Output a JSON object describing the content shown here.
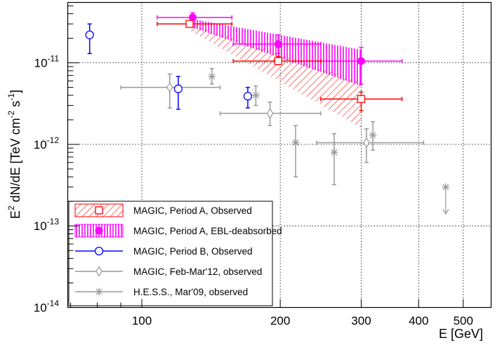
{
  "chart_data": {
    "type": "scatter",
    "xlabel": "E [GeV]",
    "ylabel_parts": {
      "y1": "E",
      "y2": "2",
      "y3": " dN/dE [TeV cm",
      "y4": "-2",
      "y5": " s",
      "y6": "-1",
      "y7": "]"
    },
    "xscale": "log",
    "yscale": "log",
    "xlim": [
      69,
      575
    ],
    "ylim": [
      1e-14,
      5.5e-11
    ],
    "grid": true,
    "legend_position": "bottom-left",
    "x_ticks": [
      {
        "value": 100,
        "label": "100"
      },
      {
        "value": 200,
        "label": "200"
      },
      {
        "value": 300,
        "label": "300"
      },
      {
        "value": 400,
        "label": "400"
      },
      {
        "value": 500,
        "label": "500"
      }
    ],
    "y_ticks": [
      {
        "value": 1e-14,
        "base": "10",
        "exp": "-14"
      },
      {
        "value": 1e-13,
        "base": "10",
        "exp": "-13"
      },
      {
        "value": 1e-12,
        "base": "10",
        "exp": "-12"
      },
      {
        "value": 1e-11,
        "base": "10",
        "exp": "-11"
      }
    ],
    "series": [
      {
        "name": "MAGIC, Period A, Observed",
        "color": "#ff0000",
        "marker": "open-square",
        "band": {
          "upper": [
            [
              127,
              3e-11
            ],
            [
              300,
              5.8e-12
            ]
          ],
          "lower": [
            [
              127,
              2.5e-11
            ],
            [
              300,
              1.6e-12
            ]
          ]
        },
        "points": [
          {
            "x": 127,
            "y": 3e-11,
            "xlo": 108,
            "xhi": 157,
            "ylo": 2.85e-11,
            "yhi": 3.15e-11
          },
          {
            "x": 198,
            "y": 1.05e-11,
            "xlo": 158,
            "xhi": 245,
            "ylo": 9.5e-12,
            "yhi": 1.2e-11
          },
          {
            "x": 300,
            "y": 3.6e-12,
            "xlo": 245,
            "xhi": 368,
            "ylo": 2.6e-12,
            "yhi": 4.4e-12
          }
        ]
      },
      {
        "name": "MAGIC, Period A, EBL-deabsorbed",
        "color": "#ff00ff",
        "marker": "filled-circle",
        "band": {
          "upper": [
            [
              127,
              3.5e-11
            ],
            [
              300,
              1.45e-11
            ]
          ],
          "lower": [
            [
              127,
              2.8e-11
            ],
            [
              300,
              5.2e-12
            ]
          ]
        },
        "points": [
          {
            "x": 129,
            "y": 3.6e-11,
            "xlo": 108,
            "xhi": 157,
            "ylo": 3.3e-11,
            "yhi": 4.1e-11
          },
          {
            "x": 198,
            "y": 1.7e-11,
            "xlo": 158,
            "xhi": 245,
            "ylo": 1.3e-11,
            "yhi": 2.2e-11
          },
          {
            "x": 300,
            "y": 1.05e-11,
            "xlo": 245,
            "xhi": 368,
            "ylo": 5.5e-12,
            "yhi": 1.55e-11
          }
        ]
      },
      {
        "name": "MAGIC, Period B, Observed",
        "color": "#0000ff",
        "marker": "open-circle",
        "points": [
          {
            "x": 77,
            "y": 2.2e-11,
            "ylo": 1.3e-11,
            "yhi": 3e-11
          },
          {
            "x": 120,
            "y": 4.8e-12,
            "ylo": 2.7e-12,
            "yhi": 6.8e-12
          },
          {
            "x": 170,
            "y": 3.9e-12,
            "ylo": 2.8e-12,
            "yhi": 5e-12
          }
        ]
      },
      {
        "name": "MAGIC, Feb-Mar'12, observed",
        "color": "#999999",
        "marker": "open-diamond",
        "points": [
          {
            "x": 115,
            "y": 5e-12,
            "xlo": 90,
            "xhi": 148,
            "ylo": 2.8e-12,
            "yhi": 7.3e-12
          },
          {
            "x": 190,
            "y": 2.4e-12,
            "xlo": 148,
            "xhi": 245,
            "ylo": 1.7e-12,
            "yhi": 3.3e-12
          },
          {
            "x": 308,
            "y": 1.05e-12,
            "xlo": 240,
            "xhi": 410,
            "ylo": 6e-13,
            "yhi": 1.55e-12
          }
        ]
      },
      {
        "name": "H.E.S.S., Mar'09, observed",
        "color": "#999999",
        "marker": "star",
        "points": [
          {
            "x": 142,
            "y": 6.8e-12,
            "ylo": 5.5e-12,
            "yhi": 8.5e-12
          },
          {
            "x": 177,
            "y": 4e-12,
            "ylo": 3e-12,
            "yhi": 5.2e-12
          },
          {
            "x": 216,
            "y": 1.05e-12,
            "ylo": 4e-13,
            "yhi": 1.7e-12
          },
          {
            "x": 262,
            "y": 8e-13,
            "ylo": 3.2e-13,
            "yhi": 1.35e-12
          },
          {
            "x": 318,
            "y": 1.3e-12,
            "ylo": 8.5e-13,
            "yhi": 1.9e-12
          },
          {
            "x": 458,
            "y": 3e-13,
            "upper_limit": true,
            "arrow_to": 1.4e-13
          }
        ]
      }
    ]
  }
}
